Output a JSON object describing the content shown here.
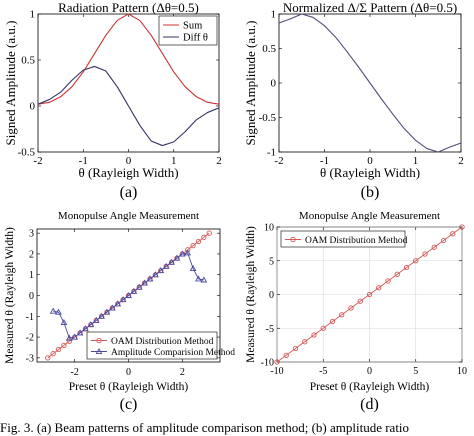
{
  "figure": {
    "caption": "Fig. 3. (a) Beam patterns of amplitude comparison method; (b) amplitude ratio"
  },
  "panels": [
    {
      "id": "a",
      "letter": "(a)",
      "chart_data": {
        "type": "line",
        "title": "Radiation Pattern (Δθ=0.5)",
        "xlabel": "θ (Rayleigh Width)",
        "ylabel": "Signed Amplitude (a.u.)",
        "xlim": [
          -2,
          2
        ],
        "ylim": [
          -0.5,
          1
        ],
        "xticks": [
          "-2",
          "-1",
          "0",
          "1",
          "2"
        ],
        "yticks": [
          "-0.5",
          "0",
          "0.5",
          "1"
        ],
        "grid": false,
        "legend_position": "top-right",
        "x": [
          -2.0,
          -1.75,
          -1.5,
          -1.25,
          -1.0,
          -0.75,
          -0.5,
          -0.25,
          0.0,
          0.25,
          0.5,
          0.75,
          1.0,
          1.25,
          1.5,
          1.75,
          2.0
        ],
        "series": [
          {
            "name": "Sum",
            "color": "#cc3333",
            "values": [
              0.02,
              0.04,
              0.1,
              0.21,
              0.37,
              0.57,
              0.77,
              0.93,
              1.0,
              0.93,
              0.77,
              0.57,
              0.37,
              0.21,
              0.1,
              0.04,
              0.02
            ]
          },
          {
            "name": "Diff θ",
            "color": "#333366",
            "values": [
              0.02,
              0.07,
              0.15,
              0.28,
              0.39,
              0.43,
              0.38,
              0.21,
              0.0,
              -0.21,
              -0.38,
              -0.43,
              -0.39,
              -0.28,
              -0.15,
              -0.07,
              -0.02
            ]
          }
        ]
      }
    },
    {
      "id": "b",
      "letter": "(b)",
      "chart_data": {
        "type": "line",
        "title": "Normalized Δ/Σ Pattern (Δθ=0.5)",
        "xlabel": "θ (Rayleigh Width)",
        "ylabel": "Signed Amplitude (a.u.)",
        "xlim": [
          -2,
          2
        ],
        "ylim": [
          -1,
          1
        ],
        "xticks": [
          "-2",
          "-1",
          "0",
          "1",
          "2"
        ],
        "yticks": [
          "-1",
          "-0.5",
          "0",
          "0.5",
          "1"
        ],
        "grid": false,
        "x": [
          -2.0,
          -1.75,
          -1.5,
          -1.25,
          -1.0,
          -0.75,
          -0.5,
          -0.25,
          0.0,
          0.25,
          0.5,
          0.75,
          1.0,
          1.25,
          1.5,
          1.75,
          2.0
        ],
        "series": [
          {
            "name": "",
            "color": "#5a4a7a",
            "values": [
              0.87,
              0.93,
              1.0,
              0.95,
              0.83,
              0.66,
              0.45,
              0.23,
              0.0,
              -0.23,
              -0.45,
              -0.66,
              -0.83,
              -0.95,
              -1.0,
              -0.93,
              -0.87
            ]
          }
        ]
      }
    },
    {
      "id": "c",
      "letter": "(c)",
      "chart_data": {
        "type": "line",
        "title": "Monopulse Angle Measurement",
        "xlabel": "Preset θ (Rayleigh Width)",
        "ylabel": "Measured θ (Rayleigh Width)",
        "xlim": [
          -3.4,
          3.4
        ],
        "ylim": [
          -3.2,
          3.2
        ],
        "xticks": [
          "-2",
          "0",
          "2"
        ],
        "xtick_values": [
          -2,
          0,
          2
        ],
        "yticks": [
          "-3",
          "-2",
          "-1",
          "0",
          "1",
          "2",
          "3"
        ],
        "grid": false,
        "legend_position": "bottom-right",
        "series": [
          {
            "name": "OAM Distribution Method",
            "color": "#d65a5a",
            "marker": "circle",
            "x": [
              -3.0,
              -2.8,
              -2.6,
              -2.4,
              -2.2,
              -2.0,
              -1.8,
              -1.6,
              -1.4,
              -1.2,
              -1.0,
              -0.8,
              -0.6,
              -0.4,
              -0.2,
              0.0,
              0.2,
              0.4,
              0.6,
              0.8,
              1.0,
              1.2,
              1.4,
              1.6,
              1.8,
              2.0,
              2.2,
              2.4,
              2.6,
              2.8,
              3.0
            ],
            "values": [
              -3.0,
              -2.8,
              -2.6,
              -2.4,
              -2.2,
              -2.0,
              -1.8,
              -1.6,
              -1.4,
              -1.2,
              -1.0,
              -0.8,
              -0.6,
              -0.4,
              -0.2,
              0.0,
              0.2,
              0.4,
              0.6,
              0.8,
              1.0,
              1.2,
              1.4,
              1.6,
              1.8,
              2.0,
              2.2,
              2.4,
              2.6,
              2.8,
              3.0
            ]
          },
          {
            "name": "Amplitude Comparision Method",
            "color": "#4a4aa0",
            "marker": "triangle",
            "x": [
              -2.8,
              -2.6,
              -2.4,
              -2.2,
              -2.0,
              -1.8,
              -1.6,
              -1.4,
              -1.2,
              -1.0,
              -0.8,
              -0.6,
              -0.4,
              -0.2,
              0.0,
              0.2,
              0.4,
              0.6,
              0.8,
              1.0,
              1.2,
              1.4,
              1.6,
              1.8,
              2.0,
              2.2,
              2.4,
              2.6,
              2.8
            ],
            "values": [
              -0.75,
              -0.8,
              -1.3,
              -2.05,
              -2.0,
              -1.8,
              -1.6,
              -1.4,
              -1.2,
              -1.0,
              -0.8,
              -0.6,
              -0.4,
              -0.2,
              0.0,
              0.2,
              0.4,
              0.6,
              0.8,
              1.0,
              1.2,
              1.4,
              1.6,
              1.8,
              2.0,
              2.05,
              1.3,
              0.8,
              0.75
            ]
          }
        ]
      }
    },
    {
      "id": "d",
      "letter": "(d)",
      "chart_data": {
        "type": "line",
        "title": "Monopulse Angle Measurement",
        "xlabel": "Preset θ (Rayleigh Width)",
        "ylabel": "Measured θ (Rayleigh Width)",
        "xlim": [
          -10,
          10
        ],
        "ylim": [
          -10,
          10
        ],
        "xticks": [
          "-10",
          "-5",
          "0",
          "5",
          "10"
        ],
        "yticks": [
          "-10",
          "-5",
          "0",
          "5",
          "10"
        ],
        "grid": true,
        "legend_position": "top-left",
        "series": [
          {
            "name": "OAM Distribution Method",
            "color": "#d65a5a",
            "marker": "circle",
            "x": [
              -10,
              -9,
              -8,
              -7,
              -6,
              -5,
              -4,
              -3,
              -2,
              -1,
              0,
              1,
              2,
              3,
              4,
              5,
              6,
              7,
              8,
              9,
              10
            ],
            "values": [
              -10,
              -9,
              -8,
              -7,
              -6,
              -5,
              -4,
              -3,
              -2,
              -1,
              0,
              1,
              2,
              3,
              4,
              5,
              6,
              7,
              8,
              9,
              10
            ]
          }
        ]
      }
    }
  ]
}
